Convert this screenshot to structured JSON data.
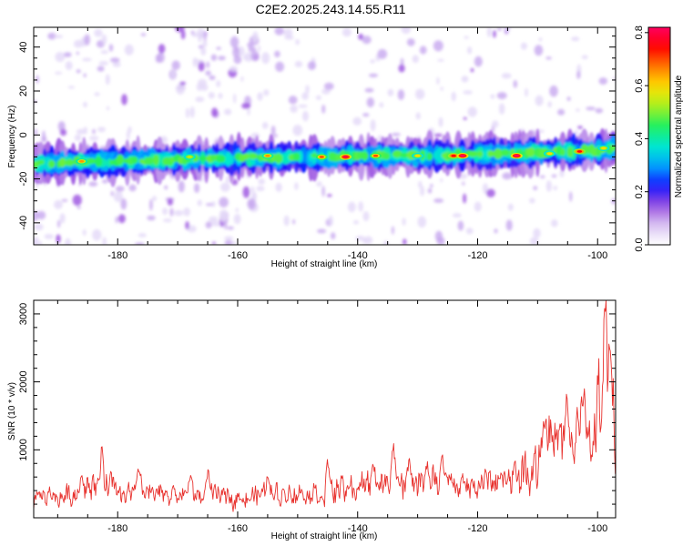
{
  "title": "C2E2.2025.243.14.55.R11",
  "colors": {
    "snr_line": "#e8322e",
    "colormap": [
      "#ffffff",
      "#d9c4f2",
      "#9a4fe0",
      "#1414ff",
      "#00a6ff",
      "#00e8d0",
      "#20f060",
      "#a8f020",
      "#ffe000",
      "#ff7a00",
      "#ff0000",
      "#ff0060"
    ]
  },
  "chart_data": [
    {
      "type": "heatmap",
      "name": "spectrogram",
      "xlabel": "Height of straight line (km)",
      "ylabel": "Frequency (Hz)",
      "xlim": [
        -194,
        -97
      ],
      "ylim": [
        -50,
        49
      ],
      "xticks": [
        -180,
        -160,
        -140,
        -120,
        -100
      ],
      "yticks": [
        -40,
        -20,
        0,
        20,
        40
      ],
      "xtick_labels": [
        "-180",
        "-160",
        "-140",
        "-120",
        "-100"
      ],
      "ytick_labels": [
        "-40",
        "-20",
        "0",
        "20",
        "40"
      ],
      "ridge": {
        "description": "Doppler trace, frequency vs height",
        "x": [
          -194,
          -180,
          -160,
          -140,
          -120,
          -100,
          -97
        ],
        "y": [
          -13,
          -12,
          -10.5,
          -9.5,
          -9,
          -7,
          -6
        ]
      },
      "hotspots": [
        {
          "x": -186,
          "y": -12,
          "amp": 0.65
        },
        {
          "x": -168,
          "y": -10,
          "amp": 0.55
        },
        {
          "x": -155,
          "y": -9.5,
          "amp": 0.65
        },
        {
          "x": -146,
          "y": -10,
          "amp": 0.7
        },
        {
          "x": -142,
          "y": -10,
          "amp": 0.8
        },
        {
          "x": -137,
          "y": -9.5,
          "amp": 0.7
        },
        {
          "x": -130,
          "y": -9.5,
          "amp": 0.6
        },
        {
          "x": -124,
          "y": -9.5,
          "amp": 0.75
        },
        {
          "x": -122.5,
          "y": -9.5,
          "amp": 0.82
        },
        {
          "x": -113.5,
          "y": -9.5,
          "amp": 0.82
        },
        {
          "x": -108,
          "y": -8.5,
          "amp": 0.6
        },
        {
          "x": -103,
          "y": -7.5,
          "amp": 0.75
        },
        {
          "x": -99,
          "y": -6,
          "amp": 0.6
        }
      ],
      "colorbar": {
        "label": "Normalized spectral amplitude",
        "range": [
          0,
          0.82
        ],
        "ticks": [
          0,
          0.2,
          0.4,
          0.6,
          0.8
        ],
        "tick_labels": [
          "0.0",
          "0.2",
          "0.4",
          "0.6",
          "0.8"
        ]
      }
    },
    {
      "type": "line",
      "name": "snr",
      "xlabel": "Height of straight line (km)",
      "ylabel": "SNR (10 * v/v)",
      "xlim": [
        -194,
        -97
      ],
      "ylim": [
        0,
        3200
      ],
      "xticks": [
        -180,
        -160,
        -140,
        -120,
        -100
      ],
      "yticks": [
        1000,
        2000,
        3000
      ],
      "xtick_labels": [
        "-180",
        "-160",
        "-140",
        "-120",
        "-100"
      ],
      "ytick_labels": [
        "1000",
        "2000",
        "3000"
      ],
      "envelope": {
        "x": [
          -194,
          -188,
          -183,
          -178,
          -170,
          -160,
          -152,
          -146,
          -140,
          -134,
          -128,
          -121,
          -116,
          -112,
          -108,
          -104,
          -101,
          -99,
          -98.3,
          -97.5,
          -97
        ],
        "y": [
          350,
          400,
          700,
          450,
          430,
          380,
          450,
          450,
          560,
          620,
          620,
          600,
          680,
          850,
          1300,
          1400,
          1550,
          2200,
          3100,
          2000,
          1500
        ]
      },
      "peaks": [
        {
          "x": -186,
          "y": 780
        },
        {
          "x": -182.7,
          "y": 1110
        },
        {
          "x": -176.5,
          "y": 860
        },
        {
          "x": -168,
          "y": 700
        },
        {
          "x": -165,
          "y": 760
        },
        {
          "x": -155,
          "y": 800
        },
        {
          "x": -145,
          "y": 950
        },
        {
          "x": -137.5,
          "y": 1020
        },
        {
          "x": -134.2,
          "y": 1240
        },
        {
          "x": -131.5,
          "y": 1050
        },
        {
          "x": -128.5,
          "y": 1000
        },
        {
          "x": -126,
          "y": 1080
        },
        {
          "x": -115,
          "y": 850
        },
        {
          "x": -109,
          "y": 1880
        },
        {
          "x": -105.2,
          "y": 1930
        },
        {
          "x": -102.8,
          "y": 1880
        },
        {
          "x": -98.9,
          "y": 3180
        },
        {
          "x": -98.1,
          "y": 2750
        }
      ]
    }
  ]
}
